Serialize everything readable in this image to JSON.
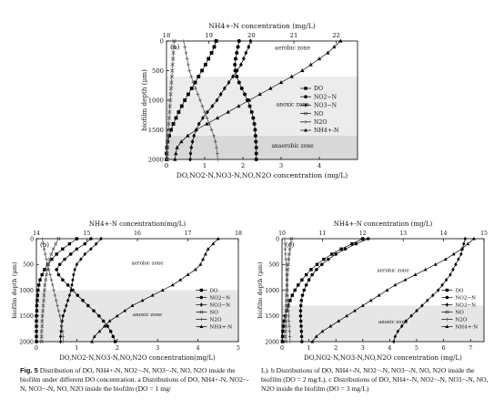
{
  "chart_data": [
    {
      "panel_label": "(a)",
      "type": "line",
      "top_axis_label": "NH4+-N concentration (mg/L)",
      "bottom_axis_label": "DO,NO2-N,NO3-N,NO,N2O concentration (mg/L)",
      "ylabel": "biofilm depth (μm)",
      "y_reversed": true,
      "ylim": [
        0,
        2000
      ],
      "y_ticks": [
        0,
        500,
        1000,
        1500,
        2000
      ],
      "xlim_bottom": [
        0,
        5
      ],
      "x_ticks_bottom": [
        0,
        1,
        2,
        3,
        4
      ],
      "xlim_top": [
        18,
        22.5
      ],
      "x_ticks_top": [
        18,
        19,
        20,
        21,
        22
      ],
      "zones": [
        {
          "name": "aerobic zone",
          "depth_range": [
            0,
            600
          ],
          "shade": "#ffffff"
        },
        {
          "name": "anoxic zone",
          "depth_range": [
            600,
            1600
          ],
          "shade": "#ececec"
        },
        {
          "name": "anaerobic zone",
          "depth_range": [
            1600,
            2000
          ],
          "shade": "#d8d8d8"
        }
      ],
      "legend": [
        "DO",
        "NO2−N",
        "NO3−N",
        "NO",
        "N2O",
        "NH4+-N"
      ],
      "depth": [
        0,
        100,
        200,
        300,
        400,
        500,
        600,
        700,
        800,
        900,
        1000,
        1100,
        1200,
        1300,
        1400,
        1500,
        1600,
        1700,
        1800,
        1900,
        2000
      ],
      "series": [
        {
          "name": "DO",
          "axis": "bottom",
          "marker": "square",
          "values": [
            1.3,
            1.25,
            1.18,
            1.1,
            1.02,
            0.93,
            0.84,
            0.75,
            0.66,
            0.57,
            0.48,
            0.4,
            0.32,
            0.25,
            0.18,
            0.12,
            0.07,
            0.03,
            0.01,
            0.0,
            0.0
          ]
        },
        {
          "name": "NO2−N",
          "axis": "bottom",
          "marker": "circle",
          "values": [
            1.9,
            1.87,
            1.84,
            1.81,
            1.79,
            1.8,
            1.84,
            1.9,
            1.97,
            2.05,
            2.12,
            2.18,
            2.23,
            2.27,
            2.3,
            2.32,
            2.33,
            2.34,
            2.35,
            2.35,
            2.35
          ]
        },
        {
          "name": "NO3−N",
          "axis": "bottom",
          "marker": "diamond",
          "values": [
            2.2,
            2.15,
            2.08,
            2.02,
            1.95,
            1.85,
            1.74,
            1.63,
            1.52,
            1.42,
            1.32,
            1.2,
            1.07,
            0.95,
            0.85,
            0.78,
            0.72,
            0.68,
            0.65,
            0.63,
            0.62
          ]
        },
        {
          "name": "NO",
          "axis": "bottom",
          "marker": "x",
          "values": [
            0.2,
            0.19,
            0.18,
            0.17,
            0.16,
            0.15,
            0.14,
            0.13,
            0.12,
            0.11,
            0.1,
            0.09,
            0.08,
            0.07,
            0.06,
            0.05,
            0.04,
            0.03,
            0.02,
            0.02,
            0.02
          ]
        },
        {
          "name": "N2O",
          "axis": "bottom",
          "marker": "plus",
          "values": [
            0.45,
            0.48,
            0.51,
            0.54,
            0.57,
            0.6,
            0.65,
            0.7,
            0.76,
            0.82,
            0.88,
            0.94,
            1.0,
            1.06,
            1.12,
            1.18,
            1.24,
            1.28,
            1.31,
            1.33,
            1.34
          ]
        },
        {
          "name": "NH4+-N",
          "axis": "top",
          "marker": "triangle",
          "values": [
            22.1,
            21.95,
            21.8,
            21.6,
            21.4,
            21.2,
            20.95,
            20.7,
            20.45,
            20.2,
            19.95,
            19.7,
            19.45,
            19.2,
            18.95,
            18.7,
            18.5,
            18.35,
            18.25,
            18.22,
            18.2
          ]
        }
      ]
    },
    {
      "panel_label": "(b)",
      "type": "line",
      "top_axis_label": "NH4+-N concentration(mg/L)",
      "bottom_axis_label": "DO,NO2-N,NO3-N,NO,N2O concentration(mg/L)",
      "ylabel": "biofilm depth (μm)",
      "y_reversed": true,
      "ylim": [
        0,
        2000
      ],
      "y_ticks": [
        0,
        500,
        1000,
        1500,
        2000
      ],
      "xlim_bottom": [
        0,
        5
      ],
      "x_ticks_bottom": [
        0,
        1,
        2,
        3,
        4,
        5
      ],
      "xlim_top": [
        14,
        18
      ],
      "x_ticks_top": [
        14,
        15,
        16,
        17,
        18
      ],
      "zones": [
        {
          "name": "aerobic zone",
          "depth_range": [
            0,
            1000
          ],
          "shade": "#ffffff"
        },
        {
          "name": "anoxic zone",
          "depth_range": [
            1000,
            2000
          ],
          "shade": "#e6e6e6"
        }
      ],
      "legend": [
        "DO",
        "NO2−N",
        "NO3−N",
        "NO",
        "N2O",
        "NH4+-N"
      ],
      "depth": [
        0,
        100,
        200,
        300,
        400,
        500,
        600,
        700,
        800,
        900,
        1000,
        1100,
        1200,
        1300,
        1400,
        1500,
        1600,
        1700,
        1800,
        1900,
        2000
      ],
      "series": [
        {
          "name": "DO",
          "axis": "bottom",
          "marker": "square",
          "values": [
            1.0,
            0.82,
            0.65,
            0.5,
            0.38,
            0.28,
            0.2,
            0.14,
            0.09,
            0.06,
            0.04,
            0.03,
            0.02,
            0.01,
            0.01,
            0.0,
            0.0,
            0.0,
            0.0,
            0.0,
            0.0
          ]
        },
        {
          "name": "NO2−N",
          "axis": "bottom",
          "marker": "circle",
          "values": [
            1.35,
            1.2,
            1.0,
            0.85,
            0.7,
            0.58,
            0.5,
            0.55,
            0.65,
            0.78,
            0.9,
            1.02,
            1.15,
            1.28,
            1.42,
            1.55,
            1.66,
            1.76,
            1.84,
            1.9,
            1.95
          ]
        },
        {
          "name": "NO3−N",
          "axis": "bottom",
          "marker": "diamond",
          "values": [
            1.6,
            1.48,
            1.35,
            1.2,
            1.1,
            1.0,
            0.95,
            0.92,
            0.9,
            0.88,
            0.86,
            0.82,
            0.78,
            0.74,
            0.7,
            0.66,
            0.64,
            0.62,
            0.61,
            0.6,
            0.6
          ]
        },
        {
          "name": "NO",
          "axis": "bottom",
          "marker": "x",
          "values": [
            0.55,
            0.48,
            0.42,
            0.37,
            0.33,
            0.3,
            0.27,
            0.25,
            0.23,
            0.21,
            0.2,
            0.19,
            0.18,
            0.17,
            0.16,
            0.15,
            0.14,
            0.14,
            0.13,
            0.13,
            0.13
          ]
        },
        {
          "name": "N2O",
          "axis": "bottom",
          "marker": "plus",
          "values": [
            0.15,
            0.17,
            0.19,
            0.22,
            0.25,
            0.28,
            0.31,
            0.34,
            0.37,
            0.4,
            0.43,
            0.46,
            0.49,
            0.52,
            0.55,
            0.58,
            0.61,
            0.63,
            0.65,
            0.66,
            0.67
          ]
        },
        {
          "name": "NH4+-N",
          "axis": "top",
          "marker": "triangle",
          "values": [
            17.6,
            17.5,
            17.4,
            17.35,
            17.3,
            17.25,
            17.15,
            17.0,
            16.85,
            16.7,
            16.5,
            16.3,
            16.1,
            15.9,
            15.75,
            15.6,
            15.45,
            15.35,
            15.25,
            15.15,
            15.1
          ]
        }
      ]
    },
    {
      "panel_label": "(c)",
      "type": "line",
      "top_axis_label": "NH4+-N concentration (mg/L)",
      "bottom_axis_label": "DO,NO2-N,NO3-N,NO,N2O concentration (mg/L)",
      "ylabel": "biofilm depth (μm)",
      "y_reversed": true,
      "ylim": [
        0,
        2000
      ],
      "y_ticks": [
        0,
        500,
        1000,
        1500,
        2000
      ],
      "xlim_bottom": [
        0,
        7.5
      ],
      "x_ticks_bottom": [
        0,
        1,
        2,
        3,
        4,
        5,
        6,
        7
      ],
      "xlim_top": [
        10,
        15
      ],
      "x_ticks_top": [
        10,
        11,
        12,
        13,
        14,
        15
      ],
      "zones": [
        {
          "name": "aerobic zone",
          "depth_range": [
            0,
            1300
          ],
          "shade": "#ffffff"
        },
        {
          "name": "anoxic zone",
          "depth_range": [
            1300,
            2000
          ],
          "shade": "#e6e6e6"
        }
      ],
      "legend": [
        "DO",
        "NO2−N",
        "NO3−N",
        "NO",
        "N2O",
        "NH4+-N"
      ],
      "depth": [
        0,
        100,
        200,
        300,
        400,
        500,
        600,
        700,
        800,
        900,
        1000,
        1100,
        1200,
        1300,
        1400,
        1500,
        1600,
        1700,
        1800,
        1900,
        2000
      ],
      "series": [
        {
          "name": "DO",
          "axis": "bottom",
          "marker": "square",
          "values": [
            3.0,
            2.6,
            2.2,
            1.85,
            1.55,
            1.3,
            1.08,
            0.9,
            0.74,
            0.6,
            0.48,
            0.38,
            0.3,
            0.23,
            0.17,
            0.12,
            0.08,
            0.05,
            0.03,
            0.02,
            0.01
          ]
        },
        {
          "name": "NO2−N",
          "axis": "bottom",
          "marker": "circle",
          "values": [
            3.2,
            2.75,
            2.35,
            2.0,
            1.72,
            1.48,
            1.28,
            1.12,
            1.0,
            0.9,
            0.82,
            0.76,
            0.72,
            0.7,
            0.69,
            0.69,
            0.7,
            0.71,
            0.72,
            0.73,
            0.74
          ]
        },
        {
          "name": "NO3−N",
          "axis": "bottom",
          "marker": "diamond",
          "values": [
            6.8,
            6.75,
            6.7,
            6.65,
            6.55,
            6.45,
            6.35,
            6.25,
            6.1,
            5.95,
            5.8,
            5.6,
            5.4,
            5.2,
            5.0,
            4.8,
            4.6,
            4.45,
            4.3,
            4.2,
            4.15
          ]
        },
        {
          "name": "NO",
          "axis": "bottom",
          "marker": "x",
          "values": [
            0.35,
            0.32,
            0.29,
            0.27,
            0.25,
            0.23,
            0.21,
            0.2,
            0.19,
            0.18,
            0.17,
            0.16,
            0.16,
            0.15,
            0.15,
            0.14,
            0.14,
            0.14,
            0.13,
            0.13,
            0.13
          ]
        },
        {
          "name": "N2O",
          "axis": "bottom",
          "marker": "plus",
          "values": [
            0.1,
            0.11,
            0.12,
            0.13,
            0.14,
            0.15,
            0.16,
            0.17,
            0.18,
            0.19,
            0.2,
            0.21,
            0.22,
            0.23,
            0.24,
            0.25,
            0.26,
            0.27,
            0.28,
            0.29,
            0.3
          ]
        },
        {
          "name": "NH4+-N",
          "axis": "top",
          "marker": "triangle",
          "values": [
            14.75,
            14.6,
            14.45,
            14.25,
            14.05,
            13.8,
            13.55,
            13.3,
            13.05,
            12.8,
            12.6,
            12.4,
            12.2,
            12.0,
            11.8,
            11.6,
            11.4,
            11.2,
            11.0,
            10.85,
            10.75
          ]
        }
      ]
    }
  ],
  "caption": {
    "label": "Fig. 5",
    "left_text": "Distribution of DO, NH4+-N, NO2−-N, NO3−-N, NO, N2O inside the biofilm under different DO concentration. a Distributions of DO, NH4+-N, NO2−-N, NO3−-N, NO, N2O inside the biofilm (DO = 1 mg/",
    "right_text": "L). b Distributions of DO, NH4+-N, NO2−-N, NO3−-N, NO, N2O inside the biofilm (DO = 2 mg/L). c Distributions of DO, NH4+-N, NO2−-N, NO3−-N, NO, N2O inside the biofilm (DO = 3 mg/L)"
  }
}
